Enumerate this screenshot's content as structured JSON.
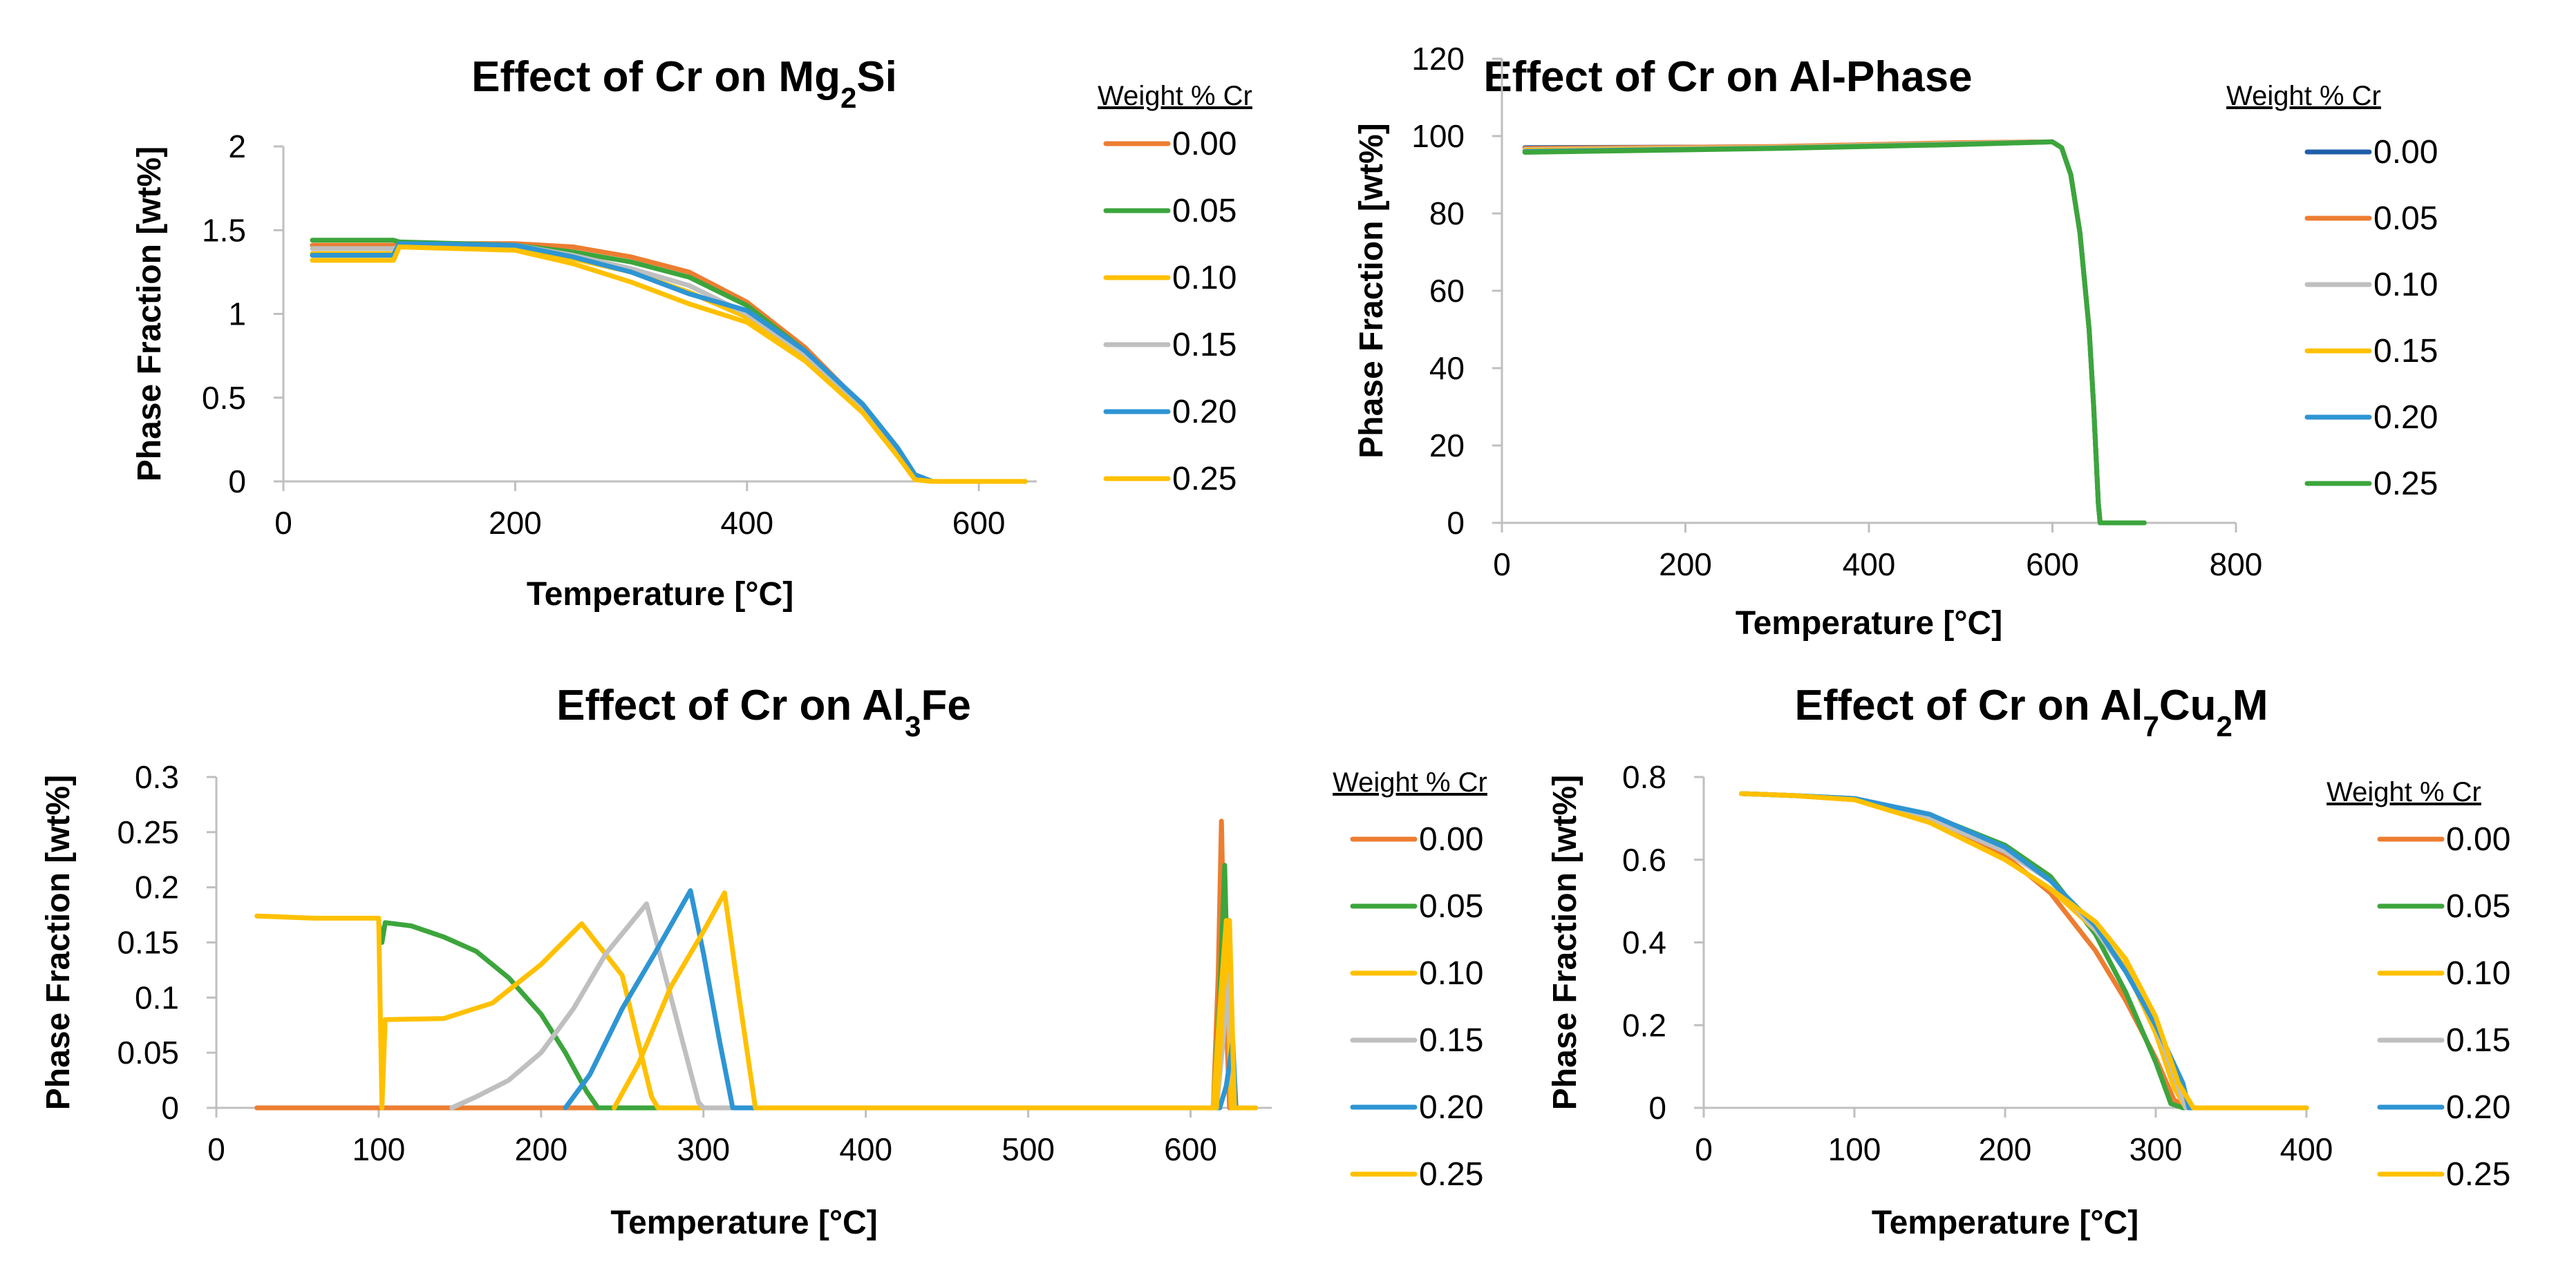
{
  "colors": {
    "orange": "#ED7D31",
    "green": "#3CA53C",
    "yellow": "#FFC000",
    "gray": "#BFBFBF",
    "blue": "#2E95D3",
    "darkblue": "#1F5FA8"
  },
  "chart_data": [
    {
      "type": "line",
      "title_parts": [
        {
          "t": "Effect of Cr on Mg",
          "sub": false
        },
        {
          "t": "2",
          "sub": true
        },
        {
          "t": "Si",
          "sub": false
        }
      ],
      "xlabel": "Temperature [°C]",
      "ylabel": "Phase Fraction [wt%]",
      "xlim": [
        0,
        650
      ],
      "ylim": [
        0,
        2
      ],
      "xticks": [
        0,
        200,
        400,
        600
      ],
      "yticks": [
        0,
        0.5,
        1,
        1.5,
        2
      ],
      "xtick_labels": [
        "0",
        "200",
        "400",
        "600"
      ],
      "ytick_labels": [
        "0",
        "0.5",
        "1",
        "1.5",
        "2"
      ],
      "legend_title": "Weight % Cr",
      "series": [
        {
          "name": "0.00",
          "color": "#ED7D31",
          "x": [
            25,
            95,
            100,
            200,
            250,
            300,
            350,
            400,
            450,
            500,
            530,
            545,
            560,
            640
          ],
          "y": [
            1.41,
            1.41,
            1.42,
            1.42,
            1.4,
            1.34,
            1.25,
            1.07,
            0.8,
            0.45,
            0.18,
            0.02,
            0,
            0
          ]
        },
        {
          "name": "0.05",
          "color": "#3CA53C",
          "x": [
            25,
            95,
            100,
            200,
            250,
            300,
            350,
            400,
            450,
            500,
            530,
            545,
            560,
            640
          ],
          "y": [
            1.44,
            1.44,
            1.43,
            1.41,
            1.37,
            1.31,
            1.22,
            1.05,
            0.78,
            0.44,
            0.17,
            0.02,
            0,
            0
          ]
        },
        {
          "name": "0.10",
          "color": "#FFC000",
          "x": [
            25,
            95,
            100,
            200,
            250,
            300,
            350,
            400,
            450,
            500,
            530,
            545,
            560,
            640
          ],
          "y": [
            1.36,
            1.36,
            1.41,
            1.4,
            1.33,
            1.25,
            1.13,
            0.98,
            0.74,
            0.42,
            0.16,
            0.02,
            0,
            0
          ]
        },
        {
          "name": "0.15",
          "color": "#BFBFBF",
          "x": [
            25,
            95,
            100,
            200,
            250,
            300,
            350,
            400,
            450,
            500,
            530,
            545,
            560,
            640
          ],
          "y": [
            1.39,
            1.39,
            1.4,
            1.41,
            1.35,
            1.27,
            1.17,
            1.0,
            0.76,
            0.43,
            0.17,
            0.02,
            0,
            0
          ]
        },
        {
          "name": "0.20",
          "color": "#2E95D3",
          "x": [
            25,
            95,
            100,
            200,
            250,
            300,
            350,
            400,
            450,
            500,
            530,
            545,
            560,
            640
          ],
          "y": [
            1.35,
            1.35,
            1.42,
            1.41,
            1.34,
            1.25,
            1.12,
            1.02,
            0.78,
            0.46,
            0.2,
            0.04,
            0,
            0
          ]
        },
        {
          "name": "0.25",
          "color": "#FFC000",
          "x": [
            25,
            95,
            100,
            200,
            250,
            300,
            350,
            400,
            450,
            500,
            530,
            545,
            560,
            640
          ],
          "y": [
            1.32,
            1.32,
            1.4,
            1.38,
            1.3,
            1.19,
            1.06,
            0.95,
            0.72,
            0.41,
            0.15,
            0.01,
            0,
            0
          ]
        }
      ]
    },
    {
      "type": "line",
      "title_parts": [
        {
          "t": "Effect of Cr on Al-Phase",
          "sub": false
        }
      ],
      "xlabel": "Temperature [°C]",
      "ylabel": "Phase Fraction [wt%]",
      "xlim": [
        0,
        800
      ],
      "ylim": [
        0,
        120
      ],
      "xticks": [
        0,
        200,
        400,
        600,
        800
      ],
      "yticks": [
        0,
        20,
        40,
        60,
        80,
        100,
        120
      ],
      "xtick_labels": [
        "0",
        "200",
        "400",
        "600",
        "800"
      ],
      "ytick_labels": [
        "0",
        "20",
        "40",
        "60",
        "80",
        "100",
        "120"
      ],
      "legend_title": "Weight % Cr",
      "series": [
        {
          "name": "0.00",
          "color": "#1F5FA8",
          "x": [
            25,
            300,
            500,
            600,
            610,
            620,
            630,
            640,
            645,
            650,
            652,
            700
          ],
          "y": [
            97,
            97.2,
            98.2,
            98.5,
            97,
            90,
            75,
            50,
            30,
            5,
            0,
            0
          ]
        },
        {
          "name": "0.05",
          "color": "#ED7D31",
          "x": [
            25,
            300,
            500,
            600,
            610,
            620,
            630,
            640,
            645,
            650,
            652,
            700
          ],
          "y": [
            96.8,
            97.3,
            98.3,
            98.5,
            97,
            90,
            75,
            50,
            30,
            5,
            0,
            0
          ]
        },
        {
          "name": "0.10",
          "color": "#BFBFBF",
          "x": [
            25,
            300,
            500,
            600,
            610,
            620,
            630,
            640,
            645,
            650,
            652,
            700
          ],
          "y": [
            96.5,
            97.1,
            98.1,
            98.5,
            97,
            90,
            75,
            50,
            30,
            5,
            0,
            0
          ]
        },
        {
          "name": "0.15",
          "color": "#FFC000",
          "x": [
            25,
            300,
            500,
            600,
            610,
            620,
            630,
            640,
            645,
            650,
            652,
            700
          ],
          "y": [
            96.3,
            97.0,
            98.0,
            98.5,
            97,
            90,
            75,
            50,
            30,
            5,
            0,
            0
          ]
        },
        {
          "name": "0.20",
          "color": "#2E95D3",
          "x": [
            25,
            300,
            500,
            600,
            610,
            620,
            630,
            640,
            645,
            650,
            652,
            700
          ],
          "y": [
            96.0,
            96.9,
            97.9,
            98.5,
            97,
            90,
            75,
            50,
            30,
            5,
            0,
            0
          ]
        },
        {
          "name": "0.25",
          "color": "#3CA53C",
          "x": [
            25,
            300,
            500,
            600,
            610,
            620,
            630,
            640,
            645,
            650,
            652,
            700
          ],
          "y": [
            95.8,
            96.8,
            97.8,
            98.5,
            97,
            90,
            75,
            50,
            30,
            5,
            0,
            0
          ]
        }
      ]
    },
    {
      "type": "line",
      "title_parts": [
        {
          "t": "Effect of Cr on Al",
          "sub": false
        },
        {
          "t": "3",
          "sub": true
        },
        {
          "t": "Fe",
          "sub": false
        }
      ],
      "xlabel": "Temperature [°C]",
      "ylabel": "Phase Fraction [wt%]",
      "xlim": [
        0,
        650
      ],
      "ylim": [
        0,
        0.3
      ],
      "xticks": [
        0,
        100,
        200,
        300,
        400,
        500,
        600
      ],
      "yticks": [
        0,
        0.05,
        0.1,
        0.15,
        0.2,
        0.25,
        0.3
      ],
      "xtick_labels": [
        "0",
        "100",
        "200",
        "300",
        "400",
        "500",
        "600"
      ],
      "ytick_labels": [
        "0",
        "0.05",
        "0.1",
        "0.15",
        "0.2",
        "0.25",
        "0.3"
      ],
      "legend_title": "Weight % Cr",
      "series": [
        {
          "name": "0.00",
          "color": "#ED7D31",
          "x": [
            25,
            614,
            617,
            619,
            621,
            624,
            626,
            640
          ],
          "y": [
            0,
            0,
            0.12,
            0.26,
            0.12,
            0,
            0,
            0
          ]
        },
        {
          "name": "0.05",
          "color": "#3CA53C",
          "x": [
            100,
            102,
            104,
            120,
            140,
            160,
            180,
            200,
            215,
            228,
            235,
            614,
            618,
            621,
            623,
            626,
            640
          ],
          "y": [
            0.168,
            0.15,
            0.168,
            0.165,
            0.155,
            0.142,
            0.118,
            0.085,
            0.05,
            0.015,
            0,
            0,
            0.1,
            0.22,
            0.1,
            0,
            0
          ]
        },
        {
          "name": "0.10",
          "color": "#FFC000",
          "x": [
            25,
            60,
            100,
            102,
            104,
            140,
            170,
            200,
            225,
            250,
            268,
            272,
            614,
            618,
            622,
            625,
            640
          ],
          "y": [
            0.174,
            0.172,
            0.172,
            0,
            0.08,
            0.081,
            0.095,
            0.13,
            0.167,
            0.12,
            0.01,
            0,
            0,
            0.09,
            0.17,
            0,
            0
          ]
        },
        {
          "name": "0.15",
          "color": "#BFBFBF",
          "x": [
            145,
            160,
            180,
            200,
            220,
            240,
            265,
            280,
            297,
            300,
            616,
            620,
            623,
            627,
            640
          ],
          "y": [
            0,
            0.01,
            0.025,
            0.05,
            0.09,
            0.14,
            0.185,
            0.1,
            0.005,
            0,
            0,
            0.06,
            0.12,
            0,
            0
          ]
        },
        {
          "name": "0.20",
          "color": "#2E95D3",
          "x": [
            215,
            230,
            250,
            270,
            292,
            300,
            310,
            318,
            320,
            618,
            622,
            626,
            628,
            640
          ],
          "y": [
            0,
            0.03,
            0.09,
            0.14,
            0.197,
            0.14,
            0.06,
            0,
            0,
            0,
            0.02,
            0.06,
            0,
            0
          ]
        },
        {
          "name": "0.25",
          "color": "#FFC000",
          "x": [
            245,
            260,
            280,
            300,
            313,
            322,
            330,
            332,
            616,
            620,
            624,
            627,
            640
          ],
          "y": [
            0,
            0.04,
            0.11,
            0.16,
            0.195,
            0.1,
            0.02,
            0,
            0,
            0.1,
            0.17,
            0,
            0
          ]
        }
      ]
    },
    {
      "type": "line",
      "title_parts": [
        {
          "t": "Effect of Cr on Al",
          "sub": false
        },
        {
          "t": "7",
          "sub": true
        },
        {
          "t": "Cu",
          "sub": false
        },
        {
          "t": "2",
          "sub": true
        },
        {
          "t": "M",
          "sub": false
        }
      ],
      "xlabel": "Temperature [°C]",
      "ylabel": "Phase Fraction [wt%]",
      "xlim": [
        0,
        400
      ],
      "ylim": [
        0,
        0.8
      ],
      "xticks": [
        0,
        100,
        200,
        300,
        400
      ],
      "yticks": [
        0,
        0.2,
        0.4,
        0.6,
        0.8
      ],
      "xtick_labels": [
        "0",
        "100",
        "200",
        "300",
        "400"
      ],
      "ytick_labels": [
        "0",
        "0.2",
        "0.4",
        "0.6",
        "0.8"
      ],
      "legend_title": "Weight % Cr",
      "series": [
        {
          "name": "0.00",
          "color": "#ED7D31",
          "x": [
            25,
            60,
            100,
            150,
            200,
            230,
            260,
            280,
            300,
            312,
            320,
            400
          ],
          "y": [
            0.76,
            0.755,
            0.745,
            0.7,
            0.61,
            0.52,
            0.38,
            0.26,
            0.12,
            0.02,
            0,
            0
          ]
        },
        {
          "name": "0.05",
          "color": "#3CA53C",
          "x": [
            25,
            60,
            100,
            150,
            200,
            230,
            260,
            280,
            300,
            310,
            318,
            400
          ],
          "y": [
            0.76,
            0.755,
            0.748,
            0.708,
            0.635,
            0.56,
            0.42,
            0.28,
            0.11,
            0.01,
            0,
            0
          ]
        },
        {
          "name": "0.10",
          "color": "#FFC000",
          "x": [
            25,
            60,
            100,
            150,
            200,
            230,
            260,
            280,
            300,
            312,
            320,
            400
          ],
          "y": [
            0.76,
            0.755,
            0.745,
            0.69,
            0.6,
            0.53,
            0.43,
            0.34,
            0.18,
            0.05,
            0,
            0
          ]
        },
        {
          "name": "0.15",
          "color": "#BFBFBF",
          "x": [
            25,
            60,
            100,
            150,
            200,
            230,
            260,
            280,
            300,
            315,
            320,
            400
          ],
          "y": [
            0.76,
            0.755,
            0.746,
            0.7,
            0.62,
            0.55,
            0.43,
            0.33,
            0.2,
            0.05,
            0,
            0
          ]
        },
        {
          "name": "0.20",
          "color": "#2E95D3",
          "x": [
            25,
            60,
            100,
            150,
            200,
            230,
            260,
            280,
            300,
            318,
            322,
            400
          ],
          "y": [
            0.76,
            0.755,
            0.748,
            0.71,
            0.63,
            0.55,
            0.44,
            0.33,
            0.2,
            0.06,
            0,
            0
          ]
        },
        {
          "name": "0.25",
          "color": "#FFC000",
          "x": [
            25,
            60,
            100,
            150,
            200,
            230,
            260,
            280,
            300,
            315,
            325,
            400
          ],
          "y": [
            0.76,
            0.755,
            0.745,
            0.69,
            0.6,
            0.53,
            0.45,
            0.36,
            0.22,
            0.06,
            0,
            0
          ]
        }
      ]
    }
  ]
}
